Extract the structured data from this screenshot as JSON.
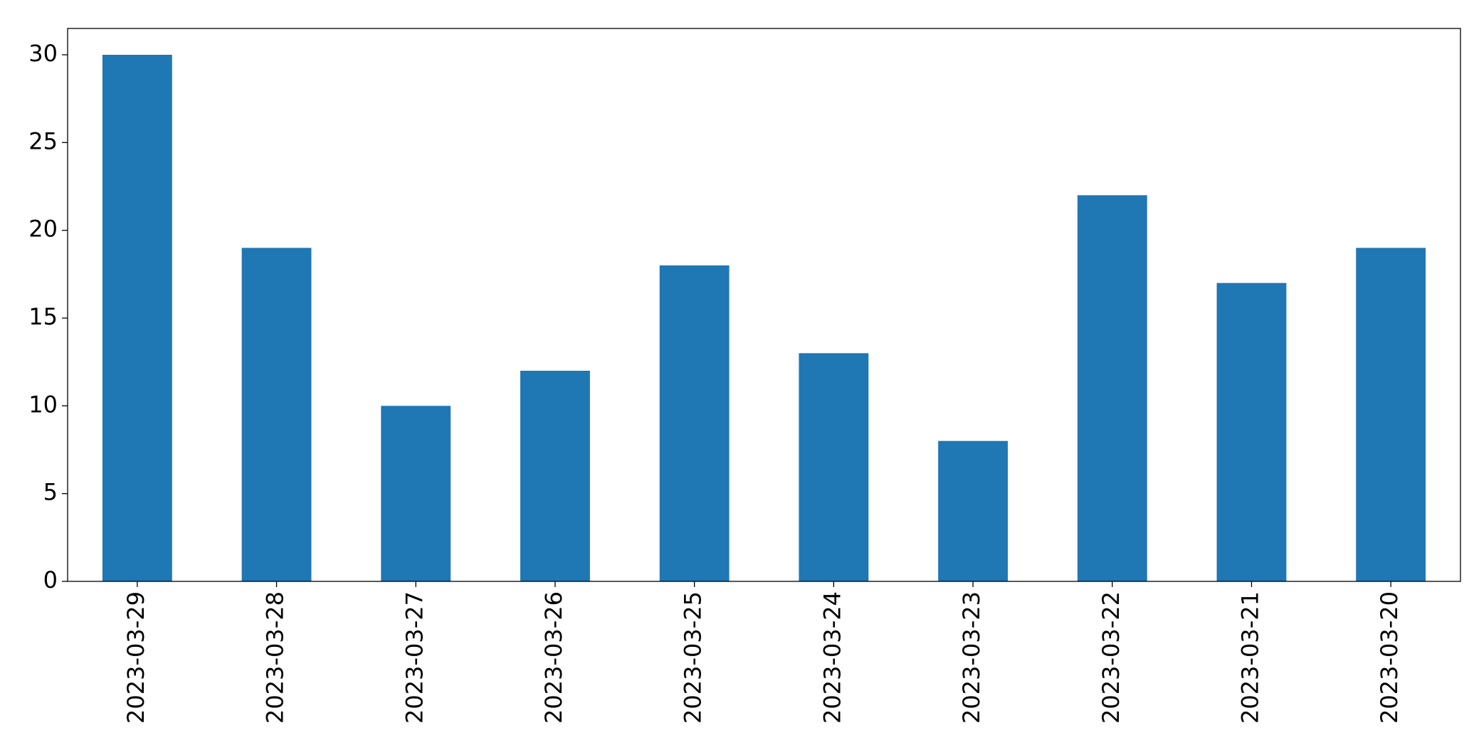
{
  "chart_data": {
    "type": "bar",
    "categories": [
      "2023-03-29",
      "2023-03-28",
      "2023-03-27",
      "2023-03-26",
      "2023-03-25",
      "2023-03-24",
      "2023-03-23",
      "2023-03-22",
      "2023-03-21",
      "2023-03-20"
    ],
    "values": [
      30,
      19,
      10,
      12,
      18,
      13,
      8,
      22,
      17,
      19
    ],
    "color": "#1f77b4",
    "ylim": [
      0,
      31.5
    ],
    "yticks": [
      0,
      5,
      10,
      15,
      20,
      25,
      30
    ],
    "grid": false
  }
}
